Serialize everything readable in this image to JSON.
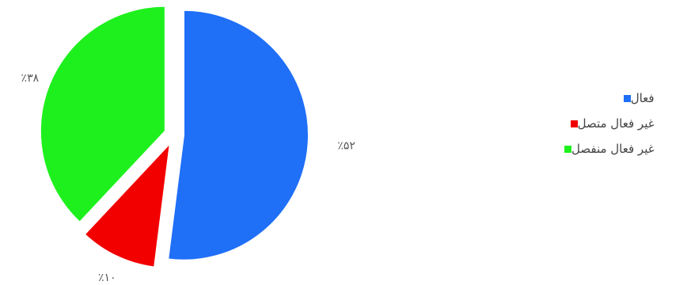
{
  "chart_data": {
    "type": "pie",
    "categories": [
      "فعال",
      "غير فعال متصل",
      "غير فعال منفصل"
    ],
    "values": [
      52,
      10,
      38
    ],
    "data_labels": [
      "٪۵۲",
      "٪۱۰",
      "٪۳۸"
    ],
    "colors": [
      "#1f6ff7",
      "#f20000",
      "#1ef01e"
    ],
    "legend_position": "right",
    "exploded": true
  },
  "legend": {
    "items": [
      {
        "label": "فعال",
        "color": "#1f6ff7"
      },
      {
        "label": "غير فعال متصل",
        "color": "#f20000"
      },
      {
        "label": "غير فعال منفصل",
        "color": "#1ef01e"
      }
    ]
  }
}
